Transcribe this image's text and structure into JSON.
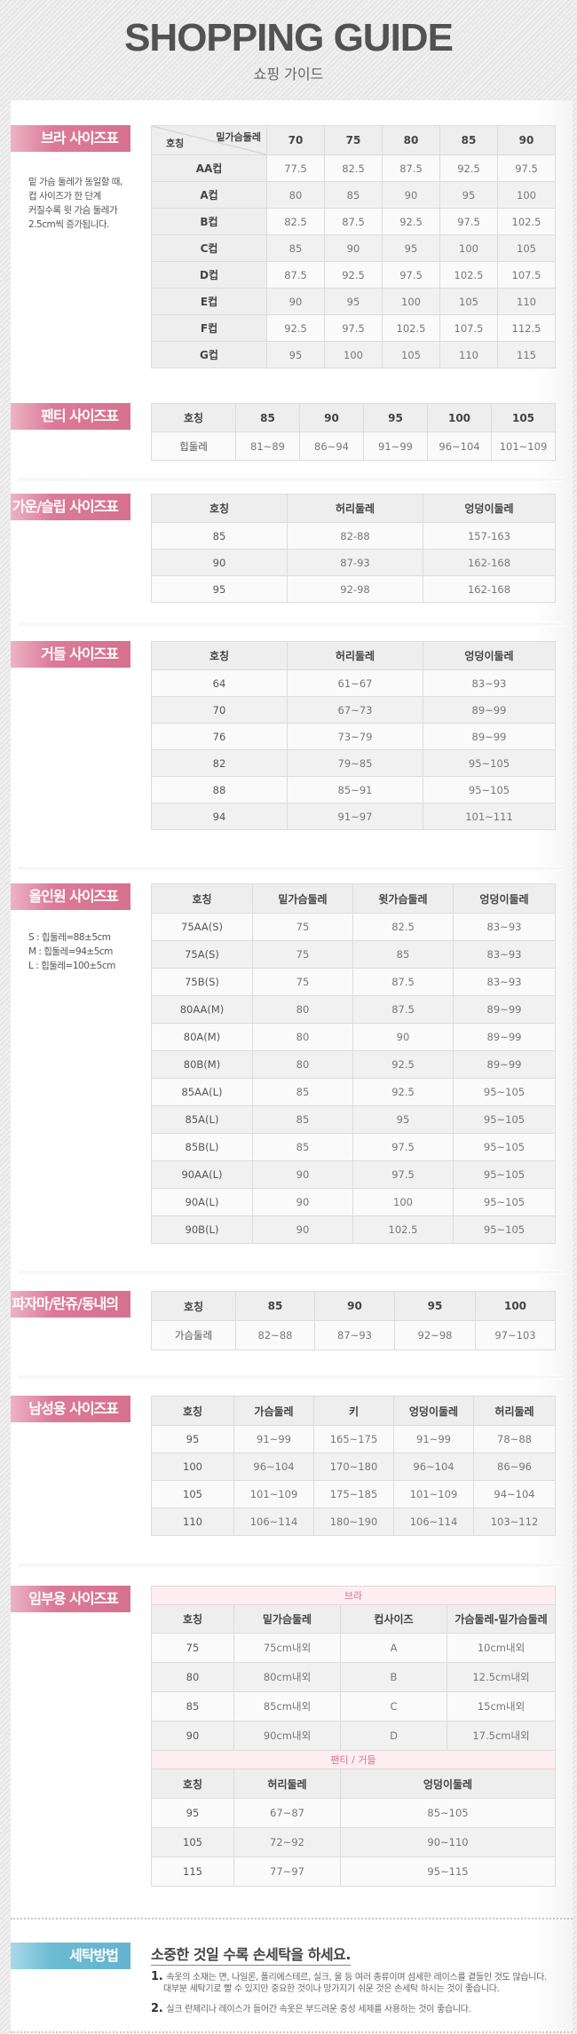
{
  "header": {
    "title": "SHOPPING GUIDE",
    "subtitle": "쇼핑 가이드"
  },
  "sections": {
    "bra": {
      "label": "브라 사이즈표",
      "note_lines": [
        "밑 가슴 둘레가 동일할 때,",
        "컵 사이즈가 한 단계",
        "커질수록 윗 가슴 둘레가",
        "2.5cm씩 증가됩니다."
      ],
      "corner_top": "밑가슴둘레",
      "corner_bottom": "호칭",
      "table": {
        "headers": [
          "",
          "70",
          "75",
          "80",
          "85",
          "90"
        ],
        "rows": [
          [
            "AA컵",
            "77.5",
            "82.5",
            "87.5",
            "92.5",
            "97.5"
          ],
          [
            "A컵",
            "80",
            "85",
            "90",
            "95",
            "100"
          ],
          [
            "B컵",
            "82.5",
            "87.5",
            "92.5",
            "97.5",
            "102.5"
          ],
          [
            "C컵",
            "85",
            "90",
            "95",
            "100",
            "105"
          ],
          [
            "D컵",
            "87.5",
            "92.5",
            "97.5",
            "102.5",
            "107.5"
          ],
          [
            "E컵",
            "90",
            "95",
            "100",
            "105",
            "110"
          ],
          [
            "F컵",
            "92.5",
            "97.5",
            "102.5",
            "107.5",
            "112.5"
          ],
          [
            "G컵",
            "95",
            "100",
            "105",
            "110",
            "115"
          ]
        ]
      }
    },
    "panty": {
      "label": "팬티 사이즈표",
      "table": {
        "headers": [
          "호칭",
          "85",
          "90",
          "95",
          "100",
          "105"
        ],
        "rows": [
          [
            "힙둘레",
            "81~89",
            "86~94",
            "91~99",
            "96~104",
            "101~109"
          ]
        ]
      }
    },
    "gown": {
      "label": "가운/슬립 사이즈표",
      "table": {
        "headers": [
          "호칭",
          "허리둘레",
          "엉덩이둘레"
        ],
        "rows": [
          [
            "85",
            "82-88",
            "157-163"
          ],
          [
            "90",
            "87-93",
            "162-168"
          ],
          [
            "95",
            "92-98",
            "162-168"
          ]
        ]
      }
    },
    "girdle": {
      "label": "거들 사이즈표",
      "table": {
        "headers": [
          "호칭",
          "허리둘레",
          "엉덩이둘레"
        ],
        "rows": [
          [
            "64",
            "61~67",
            "83~93"
          ],
          [
            "70",
            "67~73",
            "89~99"
          ],
          [
            "76",
            "73~79",
            "89~99"
          ],
          [
            "82",
            "79~85",
            "95~105"
          ],
          [
            "88",
            "85~91",
            "95~105"
          ],
          [
            "94",
            "91~97",
            "101~111"
          ]
        ]
      }
    },
    "allinone": {
      "label": "올인원 사이즈표",
      "note_lines": [
        "S : 힙둘레=88±5cm",
        "M : 힙둘레=94±5cm",
        "L : 힙둘레=100±5cm"
      ],
      "table": {
        "headers": [
          "호칭",
          "밑가슴둘레",
          "윗가슴둘레",
          "엉덩이둘레"
        ],
        "rows": [
          [
            "75AA(S)",
            "75",
            "82.5",
            "83~93"
          ],
          [
            "75A(S)",
            "75",
            "85",
            "83~93"
          ],
          [
            "75B(S)",
            "75",
            "87.5",
            "83~93"
          ],
          [
            "80AA(M)",
            "80",
            "87.5",
            "89~99"
          ],
          [
            "80A(M)",
            "80",
            "90",
            "89~99"
          ],
          [
            "80B(M)",
            "80",
            "92.5",
            "89~99"
          ],
          [
            "85AA(L)",
            "85",
            "92.5",
            "95~105"
          ],
          [
            "85A(L)",
            "85",
            "95",
            "95~105"
          ],
          [
            "85B(L)",
            "85",
            "97.5",
            "95~105"
          ],
          [
            "90AA(L)",
            "90",
            "97.5",
            "95~105"
          ],
          [
            "90A(L)",
            "90",
            "100",
            "95~105"
          ],
          [
            "90B(L)",
            "90",
            "102.5",
            "95~105"
          ]
        ]
      }
    },
    "pajama": {
      "label": "파자마/란쥬/동내의",
      "table": {
        "headers": [
          "호칭",
          "85",
          "90",
          "95",
          "100"
        ],
        "rows": [
          [
            "가슴둘레",
            "82~88",
            "87~93",
            "92~98",
            "97~103"
          ]
        ]
      }
    },
    "men": {
      "label": "남성용 사이즈표",
      "table": {
        "headers": [
          "호칭",
          "가슴둘레",
          "키",
          "엉덩이둘레",
          "허리둘레"
        ],
        "rows": [
          [
            "95",
            "91~99",
            "165~175",
            "91~99",
            "78~88"
          ],
          [
            "100",
            "96~104",
            "170~180",
            "96~104",
            "86~96"
          ],
          [
            "105",
            "101~109",
            "175~185",
            "101~109",
            "94~104"
          ],
          [
            "110",
            "106~114",
            "180~190",
            "106~114",
            "103~112"
          ]
        ]
      }
    },
    "maternity": {
      "label": "임부용 사이즈표",
      "bra_caption": "브라",
      "bra_table": {
        "headers": [
          "호칭",
          "밑가슴둘레",
          "컵사이즈",
          "가슴둘레-밑가슴둘레"
        ],
        "rows": [
          [
            "75",
            "75cm내외",
            "A",
            "10cm내외"
          ],
          [
            "80",
            "80cm내외",
            "B",
            "12.5cm내외"
          ],
          [
            "85",
            "85cm내외",
            "C",
            "15cm내외"
          ],
          [
            "90",
            "90cm내외",
            "D",
            "17.5cm내외"
          ]
        ]
      },
      "panty_caption": "팬티 / 거들",
      "panty_table": {
        "headers": [
          "호칭",
          "허리둘레",
          "엉덩이둘레"
        ],
        "rows": [
          [
            "95",
            "67~87",
            "85~105"
          ],
          [
            "105",
            "72~92",
            "90~110"
          ],
          [
            "115",
            "77~97",
            "95~115"
          ]
        ]
      }
    }
  },
  "wash": {
    "label": "세탁방법",
    "title": "소중한 것일 수록 손세탁을 하세요.",
    "items": [
      {
        "num": "1.",
        "lines": [
          "속옷의 소재는 면, 나일론, 폴리에스테르, 실크, 울 등 여러 종류이며 섬세한 레이스를 곁들인 것도 많습니다.",
          "대부분 세탁기로 빨 수 있지만 중요한 것이나 망가지기 쉬운 것은 손세탁 하시는 것이 좋습니다."
        ]
      },
      {
        "num": "2.",
        "lines": [
          "실크 란제리나 레이스가 들어간 속옷은 부드러운 중성 세제를 사용하는 것이 좋습니다."
        ]
      }
    ]
  },
  "colors": {
    "label_pink": "#d6718f",
    "label_blue": "#64b4cf",
    "caption_pink": "#d9708f"
  }
}
